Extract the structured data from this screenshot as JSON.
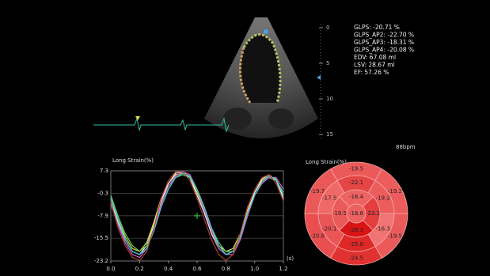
{
  "stats": [
    "GLPS: -20.71 %",
    "GLPS_AP2: -22.70 %",
    "GLPS_AP3: -18.31 %",
    "GLPS_AP4: -20.08 %",
    "EDV: 67.08 ml",
    "LSV: 28.67 ml",
    "EF: 57.26 %"
  ],
  "depth_scale": {
    "ticks": [
      0,
      5,
      10,
      15
    ]
  },
  "heart_rate": "88bpm",
  "chart_data": {
    "type": "line",
    "title": "Long Strain(%)",
    "x_label": "(s)",
    "x": [
      0,
      0.05,
      0.1,
      0.15,
      0.2,
      0.25,
      0.3,
      0.35,
      0.4,
      0.45,
      0.5,
      0.55,
      0.6,
      0.65,
      0.7,
      0.75,
      0.8,
      0.85,
      0.9,
      0.95,
      1,
      1.05,
      1.1,
      1.15,
      1.2
    ],
    "series": [
      {
        "color": "#e8e040",
        "values": [
          -2,
          -9,
          -15,
          -19,
          -20,
          -17,
          -10,
          -2,
          3,
          6,
          6.5,
          5,
          0,
          -6,
          -13,
          -18,
          -20,
          -19,
          -14,
          -6,
          0,
          4,
          5.5,
          4,
          -1
        ]
      },
      {
        "color": "#f0f0f0",
        "values": [
          -3,
          -10,
          -16,
          -20,
          -21,
          -18,
          -11,
          -3,
          3,
          6.5,
          7,
          5,
          -1,
          -7,
          -14,
          -19,
          -21,
          -20,
          -15,
          -7,
          0,
          4.5,
          6,
          4,
          -2
        ]
      },
      {
        "color": "#60d060",
        "values": [
          -1,
          -8,
          -14,
          -18,
          -20,
          -18,
          -12,
          -4,
          2,
          5,
          6,
          5,
          1,
          -5,
          -12,
          -17,
          -20,
          -20,
          -16,
          -8,
          -1,
          3,
          5,
          4,
          0
        ]
      },
      {
        "color": "#d060d0",
        "values": [
          -4,
          -11,
          -17,
          -21,
          -22,
          -19,
          -12,
          -4,
          2,
          5.5,
          7,
          6,
          1,
          -6,
          -13,
          -19,
          -21,
          -21,
          -16,
          -8,
          -1,
          3,
          5,
          5,
          1
        ]
      },
      {
        "color": "#40c8d8",
        "values": [
          -2,
          -9,
          -16,
          -20,
          -21,
          -19,
          -13,
          -5,
          1,
          5,
          6.5,
          5.5,
          1,
          -5,
          -12,
          -18,
          -21,
          -20,
          -15,
          -7,
          -1,
          3.5,
          5.5,
          4.5,
          -1
        ]
      },
      {
        "color": "#b04030",
        "values": [
          -3,
          -12,
          -18,
          -22,
          -23,
          -20,
          -12,
          -2,
          4,
          7,
          7,
          4,
          -2,
          -9,
          -16,
          -21,
          -23,
          -21,
          -14,
          -5,
          1,
          5,
          6,
          3,
          -3
        ]
      }
    ],
    "xlim": [
      0,
      1.2
    ],
    "ylim": [
      -23.2,
      7.3
    ],
    "xticks": [
      {
        "value": 0,
        "label": "0.0"
      },
      0.2,
      0.4,
      0.6,
      0.8,
      {
        "value": 1,
        "label": "1.0"
      },
      1.2
    ],
    "yticks": [
      7.3,
      -0.3,
      -7.9,
      -15.5,
      -23.2
    ],
    "grid": true
  },
  "bullseye": {
    "title": "Long Strain(%)",
    "basal": [
      -19.5,
      -19.2,
      -19.5,
      -24.5,
      -20.8,
      -19.7
    ],
    "mid": [
      -22.1,
      -19.2,
      -16.3,
      -25.8,
      -20.1,
      -17.5
    ],
    "apical": [
      -18.4,
      -23.2,
      -28.3,
      -19.5
    ],
    "apex": -18.6
  }
}
